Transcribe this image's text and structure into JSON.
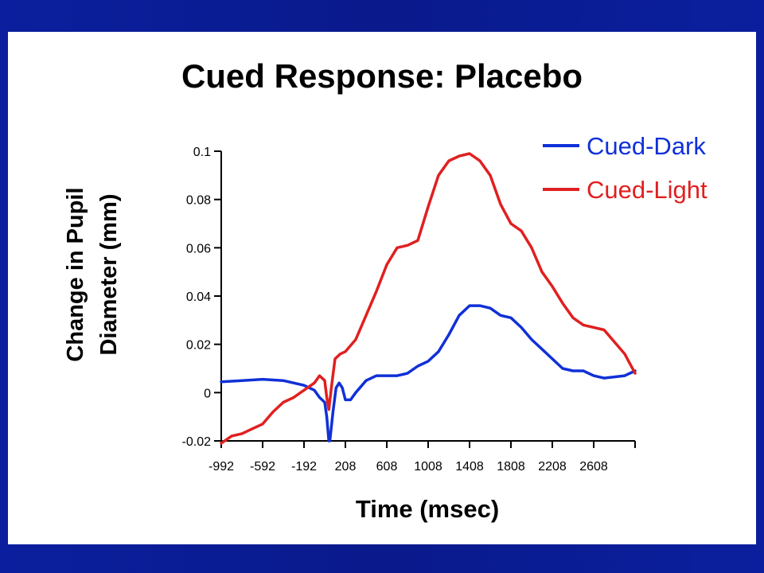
{
  "slide": {
    "title": "Cued Response: Placebo",
    "colors": {
      "frame": "#0a1a8c",
      "panel": "#ffffff"
    }
  },
  "chart_data": {
    "type": "line",
    "title": "Cued Response: Placebo",
    "xlabel": "Time (msec)",
    "ylabel_lines": [
      "Change in Pupil",
      "Diameter (mm)"
    ],
    "xlim": [
      -992,
      3008
    ],
    "ylim": [
      -0.02,
      0.1
    ],
    "x_ticks": [
      -992,
      -592,
      -192,
      208,
      608,
      1008,
      1408,
      1808,
      2208,
      2608
    ],
    "y_ticks": [
      {
        "value": 0.1,
        "label": "0.1"
      },
      {
        "value": 0.08,
        "label": "0.08"
      },
      {
        "value": 0.06,
        "label": "0.06"
      },
      {
        "value": 0.04,
        "label": "0.04"
      },
      {
        "value": 0.02,
        "label": "0.02"
      },
      {
        "value": 0,
        "label": "0"
      },
      {
        "value": -0.02,
        "label": "-0.02"
      }
    ],
    "grid": false,
    "legend_position": "top-right",
    "series": [
      {
        "name": "Cued-Dark",
        "color": "#1030d8",
        "x": [
          -992,
          -792,
          -592,
          -392,
          -292,
          -192,
          -92,
          -42,
          8,
          28,
          48,
          58,
          88,
          118,
          148,
          178,
          208,
          258,
          308,
          408,
          508,
          608,
          708,
          808,
          908,
          1008,
          1108,
          1208,
          1308,
          1408,
          1508,
          1608,
          1708,
          1808,
          1908,
          2008,
          2108,
          2208,
          2308,
          2408,
          2508,
          2608,
          2708,
          2808,
          2908,
          3008
        ],
        "y": [
          0.0045,
          0.005,
          0.0055,
          0.005,
          0.004,
          0.003,
          0.001,
          -0.002,
          -0.004,
          -0.01,
          -0.02,
          -0.02,
          -0.008,
          0.002,
          0.004,
          0.002,
          -0.003,
          -0.003,
          0.0,
          0.005,
          0.007,
          0.007,
          0.007,
          0.008,
          0.011,
          0.013,
          0.017,
          0.024,
          0.032,
          0.036,
          0.036,
          0.035,
          0.032,
          0.031,
          0.027,
          0.022,
          0.018,
          0.014,
          0.01,
          0.009,
          0.009,
          0.007,
          0.006,
          0.0065,
          0.007,
          0.009
        ]
      },
      {
        "name": "Cued-Light",
        "color": "#e02020",
        "x": [
          -992,
          -892,
          -792,
          -692,
          -592,
          -492,
          -392,
          -292,
          -192,
          -92,
          -42,
          8,
          28,
          48,
          78,
          108,
          158,
          208,
          308,
          408,
          508,
          608,
          708,
          808,
          908,
          1008,
          1108,
          1208,
          1308,
          1408,
          1508,
          1608,
          1708,
          1808,
          1908,
          2008,
          2108,
          2208,
          2308,
          2408,
          2508,
          2608,
          2708,
          2808,
          2908,
          3008
        ],
        "y": [
          -0.021,
          -0.018,
          -0.017,
          -0.015,
          -0.013,
          -0.008,
          -0.004,
          -0.002,
          0.001,
          0.004,
          0.007,
          0.005,
          -0.002,
          -0.007,
          0.004,
          0.014,
          0.016,
          0.017,
          0.022,
          0.032,
          0.042,
          0.053,
          0.06,
          0.061,
          0.063,
          0.077,
          0.09,
          0.096,
          0.098,
          0.099,
          0.096,
          0.09,
          0.078,
          0.07,
          0.067,
          0.06,
          0.05,
          0.044,
          0.037,
          0.031,
          0.028,
          0.027,
          0.026,
          0.021,
          0.016,
          0.008
        ]
      }
    ]
  }
}
